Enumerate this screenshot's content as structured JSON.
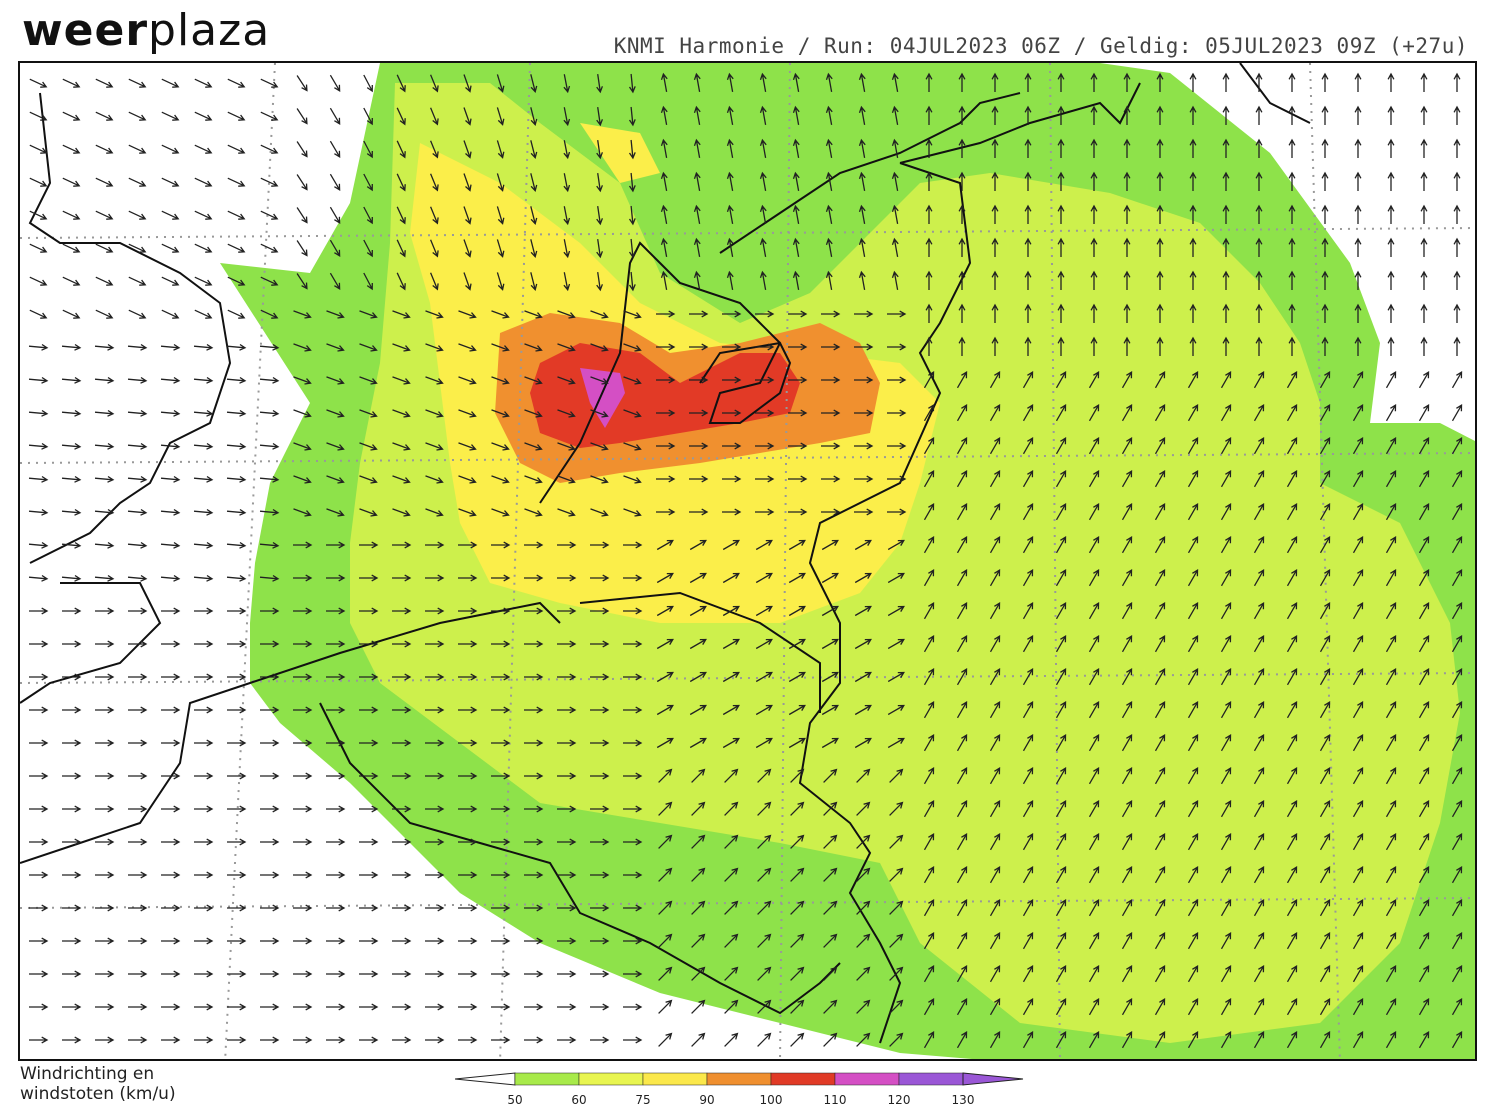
{
  "brand": {
    "logo_part1": "weer",
    "logo_part2": "plaza"
  },
  "header": {
    "text": "KNMI Harmonie / Run: 04JUL2023 06Z / Geldig: 05JUL2023 09Z (+27u)"
  },
  "map": {
    "unit": "km/u",
    "zones": [
      {
        "category": "50-60",
        "color": "#8ee24a"
      },
      {
        "category": "60-75",
        "color": "#cdf04c"
      },
      {
        "category": "75-90",
        "color": "#fbee4a"
      },
      {
        "category": "90-100",
        "color": "#f0902f"
      },
      {
        "category": "100-110",
        "color": "#e23a26"
      },
      {
        "category": "110-120",
        "color": "#d44fc4"
      }
    ]
  },
  "legend": {
    "title_line1": "Windrichting en",
    "title_line2": "windstoten (km/u)",
    "stops": [
      "50",
      "60",
      "75",
      "90",
      "100",
      "110",
      "120",
      "130"
    ],
    "colors": [
      "#6fdc3a",
      "#a8ea4a",
      "#e8f550",
      "#fbe84b",
      "#ef8f2f",
      "#e03a26",
      "#d44fc4",
      "#9a57d6"
    ]
  }
}
